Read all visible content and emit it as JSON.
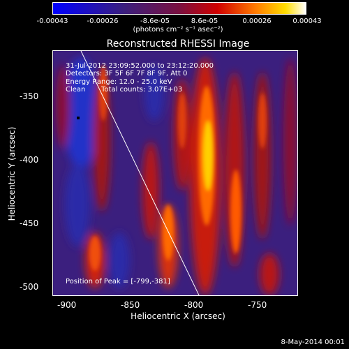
{
  "colorbar": {
    "ticks": [
      "-0.00043",
      "-0.00026",
      "-8.6e-05",
      "8.6e-05",
      "0.00026",
      "0.00043"
    ],
    "units": "(photons cm⁻² s⁻¹ asec⁻²)"
  },
  "title": "Reconstructed RHESSI Image",
  "annotations": {
    "time": "31-Jul-2012 23:09:52.000 to 23:12:20.000",
    "detectors": "Detectors: 3F 5F 6F 7F 8F 9F, Att 0",
    "energy": "Energy Range: 12.0 - 25.0 keV",
    "clean": "Clean",
    "counts": "Total counts: 3.07E+03",
    "peak": "Position of Peak = [-799,-381]"
  },
  "axes": {
    "xlabel": "Heliocentric X (arcsec)",
    "ylabel": "Heliocentric Y (arcsec)",
    "xticks": [
      "-900",
      "-850",
      "-800",
      "-750"
    ],
    "yticks": [
      "-350",
      "-400",
      "-450",
      "-500"
    ]
  },
  "footer": "8-May-2014 00:01",
  "colors": {
    "background": "#000000",
    "colormap": [
      "#0000ff",
      "#3b1f7e",
      "#7a1c5e",
      "#c41c10",
      "#ff6a00",
      "#ffcc00",
      "#ffffff"
    ]
  }
}
